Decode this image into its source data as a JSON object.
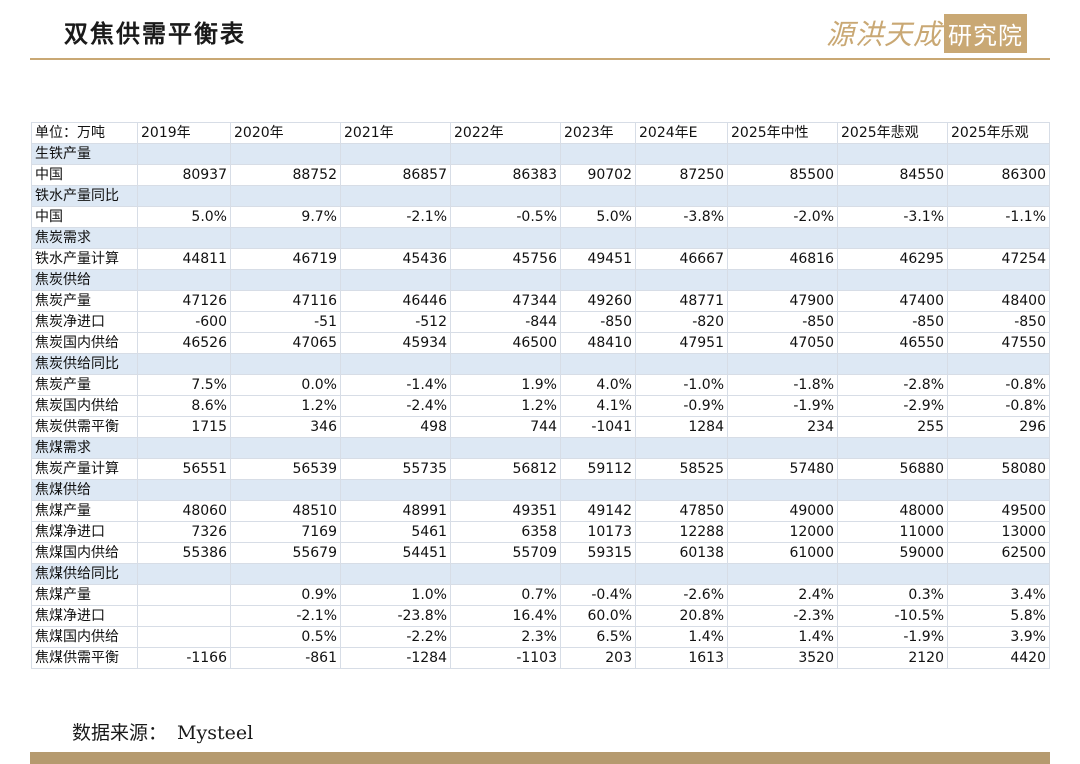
{
  "page": {
    "title": "双焦供需平衡表",
    "brand_main": "源洪天成",
    "brand_box": "研究院"
  },
  "table": {
    "header": [
      "单位：万吨",
      "2019年",
      "2020年",
      "2021年",
      "2022年",
      "2023年",
      "2024年E",
      "2025年中性",
      "2025年悲观",
      "2025年乐观"
    ],
    "rows": [
      {
        "type": "section",
        "label": "生铁产量"
      },
      {
        "type": "data",
        "label": "中国",
        "values": [
          "80937",
          "88752",
          "86857",
          "86383",
          "90702",
          "87250",
          "85500",
          "84550",
          "86300"
        ]
      },
      {
        "type": "section",
        "label": "铁水产量同比"
      },
      {
        "type": "data",
        "label": "中国",
        "values": [
          "5.0%",
          "9.7%",
          "-2.1%",
          "-0.5%",
          "5.0%",
          "-3.8%",
          "-2.0%",
          "-3.1%",
          "-1.1%"
        ]
      },
      {
        "type": "section",
        "label": "焦炭需求"
      },
      {
        "type": "data",
        "label": "铁水产量计算",
        "values": [
          "44811",
          "46719",
          "45436",
          "45756",
          "49451",
          "46667",
          "46816",
          "46295",
          "47254"
        ]
      },
      {
        "type": "section",
        "label": "焦炭供给"
      },
      {
        "type": "data",
        "label": "焦炭产量",
        "values": [
          "47126",
          "47116",
          "46446",
          "47344",
          "49260",
          "48771",
          "47900",
          "47400",
          "48400"
        ]
      },
      {
        "type": "data",
        "label": "焦炭净进口",
        "values": [
          "-600",
          "-51",
          "-512",
          "-844",
          "-850",
          "-820",
          "-850",
          "-850",
          "-850"
        ]
      },
      {
        "type": "data",
        "label": "焦炭国内供给",
        "values": [
          "46526",
          "47065",
          "45934",
          "46500",
          "48410",
          "47951",
          "47050",
          "46550",
          "47550"
        ]
      },
      {
        "type": "section",
        "label": "焦炭供给同比"
      },
      {
        "type": "data",
        "label": "焦炭产量",
        "values": [
          "7.5%",
          "0.0%",
          "-1.4%",
          "1.9%",
          "4.0%",
          "-1.0%",
          "-1.8%",
          "-2.8%",
          "-0.8%"
        ]
      },
      {
        "type": "data",
        "label": "焦炭国内供给",
        "values": [
          "8.6%",
          "1.2%",
          "-2.4%",
          "1.2%",
          "4.1%",
          "-0.9%",
          "-1.9%",
          "-2.9%",
          "-0.8%"
        ]
      },
      {
        "type": "data",
        "label": "焦炭供需平衡",
        "values": [
          "1715",
          "346",
          "498",
          "744",
          "-1041",
          "1284",
          "234",
          "255",
          "296"
        ]
      },
      {
        "type": "section",
        "label": "焦煤需求"
      },
      {
        "type": "data",
        "label": "焦炭产量计算",
        "values": [
          "56551",
          "56539",
          "55735",
          "56812",
          "59112",
          "58525",
          "57480",
          "56880",
          "58080"
        ]
      },
      {
        "type": "section",
        "label": "焦煤供给"
      },
      {
        "type": "data",
        "label": "焦煤产量",
        "values": [
          "48060",
          "48510",
          "48991",
          "49351",
          "49142",
          "47850",
          "49000",
          "48000",
          "49500"
        ]
      },
      {
        "type": "data",
        "label": "焦煤净进口",
        "values": [
          "7326",
          "7169",
          "5461",
          "6358",
          "10173",
          "12288",
          "12000",
          "11000",
          "13000"
        ]
      },
      {
        "type": "data",
        "label": "焦煤国内供给",
        "values": [
          "55386",
          "55679",
          "54451",
          "55709",
          "59315",
          "60138",
          "61000",
          "59000",
          "62500"
        ]
      },
      {
        "type": "section",
        "label": "焦煤供给同比"
      },
      {
        "type": "data",
        "label": "焦煤产量",
        "values": [
          "",
          "0.9%",
          "1.0%",
          "0.7%",
          "-0.4%",
          "-2.6%",
          "2.4%",
          "0.3%",
          "3.4%"
        ]
      },
      {
        "type": "data",
        "label": "焦煤净进口",
        "values": [
          "",
          "-2.1%",
          "-23.8%",
          "16.4%",
          "60.0%",
          "20.8%",
          "-2.3%",
          "-10.5%",
          "5.8%"
        ]
      },
      {
        "type": "data",
        "label": "焦煤国内供给",
        "values": [
          "",
          "0.5%",
          "-2.2%",
          "2.3%",
          "6.5%",
          "1.4%",
          "1.4%",
          "-1.9%",
          "3.9%"
        ]
      },
      {
        "type": "data",
        "label": "焦煤供需平衡",
        "values": [
          "-1166",
          "-861",
          "-1284",
          "-1103",
          "203",
          "1613",
          "3520",
          "2120",
          "4420"
        ]
      }
    ]
  },
  "footer": {
    "source_label": "数据来源：",
    "source_value": "Mysteel"
  },
  "colors": {
    "accent_gold": "#c9a874",
    "section_fill": "#dde8f4",
    "bottom_bar": "#b59a6f"
  }
}
